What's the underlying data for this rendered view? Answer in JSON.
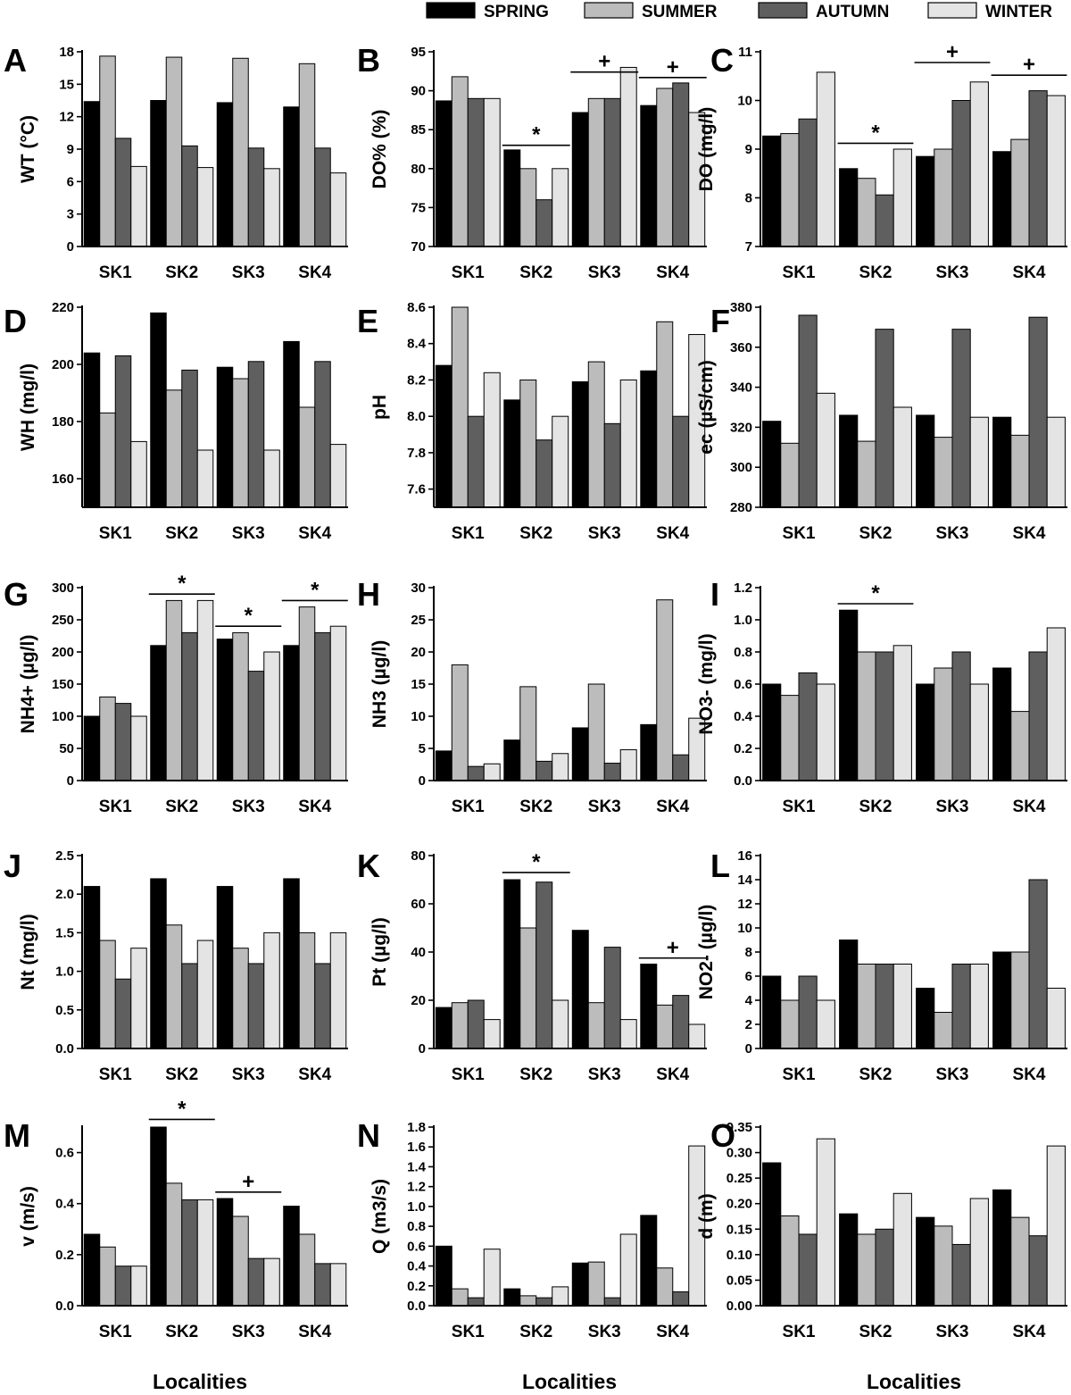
{
  "legend": [
    {
      "name": "SPRING",
      "color": "#000000"
    },
    {
      "name": "SUMMER",
      "color": "#bcbcbc"
    },
    {
      "name": "AUTUMN",
      "color": "#5f5f5f"
    },
    {
      "name": "WINTER",
      "color": "#e4e4e4"
    }
  ],
  "chart_data": [
    {
      "type": "bar",
      "panel": "A",
      "ylabel": "WT (°C)",
      "ylim": [
        0,
        18
      ],
      "yticks": [
        "0",
        "3",
        "6",
        "9",
        "12",
        "15",
        "18"
      ],
      "categories": [
        "SK1",
        "SK2",
        "SK3",
        "SK4"
      ],
      "series": [
        {
          "name": "SPRING",
          "values": [
            13.4,
            13.5,
            13.3,
            12.9
          ]
        },
        {
          "name": "SUMMER",
          "values": [
            17.6,
            17.5,
            17.4,
            16.9
          ]
        },
        {
          "name": "AUTUMN",
          "values": [
            10.0,
            9.3,
            9.1,
            9.1
          ]
        },
        {
          "name": "WINTER",
          "values": [
            7.4,
            7.3,
            7.2,
            6.8
          ]
        }
      ],
      "annotations": []
    },
    {
      "type": "bar",
      "panel": "B",
      "ylabel": "DO% (%)",
      "ylim": [
        70,
        95
      ],
      "yticks": [
        "70",
        "75",
        "80",
        "85",
        "90",
        "95"
      ],
      "categories": [
        "SK1",
        "SK2",
        "SK3",
        "SK4"
      ],
      "series": [
        {
          "name": "SPRING",
          "values": [
            88.7,
            82.4,
            87.2,
            88.1
          ]
        },
        {
          "name": "SUMMER",
          "values": [
            91.8,
            80.0,
            89.0,
            90.3
          ]
        },
        {
          "name": "AUTUMN",
          "values": [
            89.0,
            76.0,
            89.0,
            91.0
          ]
        },
        {
          "name": "WINTER",
          "values": [
            89.0,
            80.0,
            93.0,
            87.2
          ]
        }
      ],
      "annotations": [
        {
          "symbol": "*",
          "category": "SK2",
          "y": 83
        },
        {
          "symbol": "+",
          "category": "SK3",
          "y": 92.4
        },
        {
          "symbol": "+",
          "category": "SK4",
          "y": 91.7
        }
      ]
    },
    {
      "type": "bar",
      "panel": "C",
      "ylabel": "DO (mg/l)",
      "ylim": [
        7,
        11
      ],
      "yticks": [
        "7",
        "8",
        "9",
        "10",
        "11"
      ],
      "categories": [
        "SK1",
        "SK2",
        "SK3",
        "SK4"
      ],
      "series": [
        {
          "name": "SPRING",
          "values": [
            9.27,
            8.6,
            8.85,
            8.95
          ]
        },
        {
          "name": "SUMMER",
          "values": [
            9.32,
            8.4,
            9.0,
            9.2
          ]
        },
        {
          "name": "AUTUMN",
          "values": [
            9.62,
            8.06,
            10.0,
            10.2
          ]
        },
        {
          "name": "WINTER",
          "values": [
            10.58,
            9.0,
            10.38,
            10.1
          ]
        }
      ],
      "annotations": [
        {
          "symbol": "*",
          "category": "SK2",
          "y": 9.12
        },
        {
          "symbol": "+",
          "category": "SK3",
          "y": 10.78
        },
        {
          "symbol": "+",
          "category": "SK4",
          "y": 10.52
        }
      ]
    },
    {
      "type": "bar",
      "panel": "D",
      "ylabel": "WH (mg/l)",
      "ylim": [
        150,
        220
      ],
      "yticks": [
        "160",
        "180",
        "200",
        "220"
      ],
      "categories": [
        "SK1",
        "SK2",
        "SK3",
        "SK4"
      ],
      "series": [
        {
          "name": "SPRING",
          "values": [
            204,
            218,
            199,
            208
          ]
        },
        {
          "name": "SUMMER",
          "values": [
            183,
            191,
            195,
            185
          ]
        },
        {
          "name": "AUTUMN",
          "values": [
            203,
            198,
            201,
            201
          ]
        },
        {
          "name": "WINTER",
          "values": [
            173,
            170,
            170,
            172
          ]
        }
      ],
      "annotations": []
    },
    {
      "type": "bar",
      "panel": "E",
      "ylabel": "pH",
      "ylim": [
        7.5,
        8.6
      ],
      "yticks": [
        "7.6",
        "7.8",
        "8.0",
        "8.2",
        "8.4",
        "8.6"
      ],
      "categories": [
        "SK1",
        "SK2",
        "SK3",
        "SK4"
      ],
      "series": [
        {
          "name": "SPRING",
          "values": [
            8.28,
            8.09,
            8.19,
            8.25
          ]
        },
        {
          "name": "SUMMER",
          "values": [
            8.6,
            8.2,
            8.3,
            8.52
          ]
        },
        {
          "name": "AUTUMN",
          "values": [
            8.0,
            7.87,
            7.96,
            8.0
          ]
        },
        {
          "name": "WINTER",
          "values": [
            8.24,
            8.0,
            8.2,
            8.45
          ]
        }
      ],
      "annotations": []
    },
    {
      "type": "bar",
      "panel": "F",
      "ylabel": "ec (µS/cm)",
      "ylim": [
        280,
        380
      ],
      "yticks": [
        "280",
        "300",
        "320",
        "340",
        "360",
        "380"
      ],
      "categories": [
        "SK1",
        "SK2",
        "SK3",
        "SK4"
      ],
      "series": [
        {
          "name": "SPRING",
          "values": [
            323,
            326,
            326,
            325
          ]
        },
        {
          "name": "SUMMER",
          "values": [
            312,
            313,
            315,
            316
          ]
        },
        {
          "name": "AUTUMN",
          "values": [
            376,
            369,
            369,
            375
          ]
        },
        {
          "name": "WINTER",
          "values": [
            337,
            330,
            325,
            325
          ]
        }
      ],
      "annotations": []
    },
    {
      "type": "bar",
      "panel": "G",
      "ylabel": "NH4+ (µg/l)",
      "ylim": [
        0,
        300
      ],
      "yticks": [
        "0",
        "50",
        "100",
        "150",
        "200",
        "250",
        "300"
      ],
      "categories": [
        "SK1",
        "SK2",
        "SK3",
        "SK4"
      ],
      "series": [
        {
          "name": "SPRING",
          "values": [
            100,
            210,
            220,
            210
          ]
        },
        {
          "name": "SUMMER",
          "values": [
            130,
            280,
            230,
            270
          ]
        },
        {
          "name": "AUTUMN",
          "values": [
            120,
            230,
            170,
            230
          ]
        },
        {
          "name": "WINTER",
          "values": [
            100,
            280,
            200,
            240
          ]
        }
      ],
      "annotations": [
        {
          "symbol": "*",
          "category": "SK2",
          "y": 290
        },
        {
          "symbol": "*",
          "category": "SK3",
          "y": 240
        },
        {
          "symbol": "*",
          "category": "SK4",
          "y": 280
        }
      ]
    },
    {
      "type": "bar",
      "panel": "H",
      "ylabel": "NH3 (µg/l)",
      "ylim": [
        0,
        30
      ],
      "yticks": [
        "0",
        "5",
        "10",
        "15",
        "20",
        "25",
        "30"
      ],
      "categories": [
        "SK1",
        "SK2",
        "SK3",
        "SK4"
      ],
      "series": [
        {
          "name": "SPRING",
          "values": [
            4.6,
            6.3,
            8.2,
            8.7
          ]
        },
        {
          "name": "SUMMER",
          "values": [
            18.0,
            14.6,
            15.0,
            28.1
          ]
        },
        {
          "name": "AUTUMN",
          "values": [
            2.2,
            3.0,
            2.7,
            4.0
          ]
        },
        {
          "name": "WINTER",
          "values": [
            2.6,
            4.2,
            4.8,
            9.7
          ]
        }
      ],
      "annotations": []
    },
    {
      "type": "bar",
      "panel": "I",
      "ylabel": "NO3- (mg/l)",
      "ylim": [
        0,
        1.2
      ],
      "yticks": [
        "0.0",
        "0.2",
        "0.4",
        "0.6",
        "0.8",
        "1.0",
        "1.2"
      ],
      "categories": [
        "SK1",
        "SK2",
        "SK3",
        "SK4"
      ],
      "series": [
        {
          "name": "SPRING",
          "values": [
            0.6,
            1.06,
            0.6,
            0.7
          ]
        },
        {
          "name": "SUMMER",
          "values": [
            0.53,
            0.8,
            0.7,
            0.43
          ]
        },
        {
          "name": "AUTUMN",
          "values": [
            0.67,
            0.8,
            0.8,
            0.8
          ]
        },
        {
          "name": "WINTER",
          "values": [
            0.6,
            0.84,
            0.6,
            0.95
          ]
        }
      ],
      "annotations": [
        {
          "symbol": "*",
          "category": "SK2",
          "y": 1.1
        }
      ]
    },
    {
      "type": "bar",
      "panel": "J",
      "ylabel": "Nt (mg/l)",
      "ylim": [
        0,
        2.5
      ],
      "yticks": [
        "0.0",
        "0.5",
        "1.0",
        "1.5",
        "2.0",
        "2.5"
      ],
      "categories": [
        "SK1",
        "SK2",
        "SK3",
        "SK4"
      ],
      "series": [
        {
          "name": "SPRING",
          "values": [
            2.1,
            2.2,
            2.1,
            2.2
          ]
        },
        {
          "name": "SUMMER",
          "values": [
            1.4,
            1.6,
            1.3,
            1.5
          ]
        },
        {
          "name": "AUTUMN",
          "values": [
            0.9,
            1.1,
            1.1,
            1.1
          ]
        },
        {
          "name": "WINTER",
          "values": [
            1.3,
            1.4,
            1.5,
            1.5
          ]
        }
      ],
      "annotations": []
    },
    {
      "type": "bar",
      "panel": "K",
      "ylabel": "Pt (µg/l)",
      "ylim": [
        0,
        80
      ],
      "yticks": [
        "0",
        "20",
        "40",
        "60",
        "80"
      ],
      "categories": [
        "SK1",
        "SK2",
        "SK3",
        "SK4"
      ],
      "series": [
        {
          "name": "SPRING",
          "values": [
            17,
            70,
            49,
            35
          ]
        },
        {
          "name": "SUMMER",
          "values": [
            19,
            50,
            19,
            18
          ]
        },
        {
          "name": "AUTUMN",
          "values": [
            20,
            69,
            42,
            22
          ]
        },
        {
          "name": "WINTER",
          "values": [
            12,
            20,
            12,
            10
          ]
        }
      ],
      "annotations": [
        {
          "symbol": "*",
          "category": "SK2",
          "y": 73
        },
        {
          "symbol": "+",
          "category": "SK4",
          "y": 37.5
        }
      ]
    },
    {
      "type": "bar",
      "panel": "L",
      "ylabel": "NO2- (µg/l)",
      "ylim": [
        0,
        16
      ],
      "yticks": [
        "0",
        "2",
        "4",
        "6",
        "8",
        "10",
        "12",
        "14",
        "16"
      ],
      "categories": [
        "SK1",
        "SK2",
        "SK3",
        "SK4"
      ],
      "series": [
        {
          "name": "SPRING",
          "values": [
            6,
            9,
            5,
            8
          ]
        },
        {
          "name": "SUMMER",
          "values": [
            4,
            7,
            3,
            8
          ]
        },
        {
          "name": "AUTUMN",
          "values": [
            6,
            7,
            7,
            14
          ]
        },
        {
          "name": "WINTER",
          "values": [
            4,
            7,
            7,
            5
          ]
        }
      ],
      "annotations": []
    },
    {
      "type": "bar",
      "panel": "M",
      "ylabel": "v (m/s)",
      "ylim": [
        0,
        0.7
      ],
      "yticks": [
        "0.0",
        "0.2",
        "0.4",
        "0.6"
      ],
      "categories": [
        "SK1",
        "SK2",
        "SK3",
        "SK4"
      ],
      "xlabel": "Localities",
      "series": [
        {
          "name": "SPRING",
          "values": [
            0.28,
            0.7,
            0.42,
            0.39
          ]
        },
        {
          "name": "SUMMER",
          "values": [
            0.23,
            0.48,
            0.35,
            0.28
          ]
        },
        {
          "name": "AUTUMN",
          "values": [
            0.155,
            0.415,
            0.185,
            0.165
          ]
        },
        {
          "name": "WINTER",
          "values": [
            0.155,
            0.415,
            0.185,
            0.165
          ]
        }
      ],
      "annotations": [
        {
          "symbol": "*",
          "category": "SK2",
          "y": 0.73
        },
        {
          "symbol": "+",
          "category": "SK3",
          "y": 0.445
        }
      ]
    },
    {
      "type": "bar",
      "panel": "N",
      "ylabel": "Q (m3/s)",
      "ylim": [
        0,
        1.8
      ],
      "yticks": [
        "0.0",
        "0.2",
        "0.4",
        "0.6",
        "0.8",
        "1.0",
        "1.2",
        "1.4",
        "1.6",
        "1.8"
      ],
      "categories": [
        "SK1",
        "SK2",
        "SK3",
        "SK4"
      ],
      "xlabel": "Localities",
      "series": [
        {
          "name": "SPRING",
          "values": [
            0.6,
            0.17,
            0.43,
            0.91
          ]
        },
        {
          "name": "SUMMER",
          "values": [
            0.17,
            0.1,
            0.44,
            0.38
          ]
        },
        {
          "name": "AUTUMN",
          "values": [
            0.08,
            0.08,
            0.08,
            0.14
          ]
        },
        {
          "name": "WINTER",
          "values": [
            0.57,
            0.19,
            0.72,
            1.61
          ]
        }
      ],
      "annotations": []
    },
    {
      "type": "bar",
      "panel": "O",
      "ylabel": "d (m)",
      "ylim": [
        0,
        0.35
      ],
      "yticks": [
        "0.00",
        "0.05",
        "0.10",
        "0.15",
        "0.20",
        "0.25",
        "0.30",
        "0.35"
      ],
      "categories": [
        "SK1",
        "SK2",
        "SK3",
        "SK4"
      ],
      "xlabel": "Localities",
      "series": [
        {
          "name": "SPRING",
          "values": [
            0.28,
            0.18,
            0.173,
            0.227
          ]
        },
        {
          "name": "SUMMER",
          "values": [
            0.176,
            0.14,
            0.156,
            0.173
          ]
        },
        {
          "name": "AUTUMN",
          "values": [
            0.14,
            0.15,
            0.12,
            0.137
          ]
        },
        {
          "name": "WINTER",
          "values": [
            0.327,
            0.22,
            0.21,
            0.313
          ]
        }
      ],
      "annotations": []
    }
  ]
}
